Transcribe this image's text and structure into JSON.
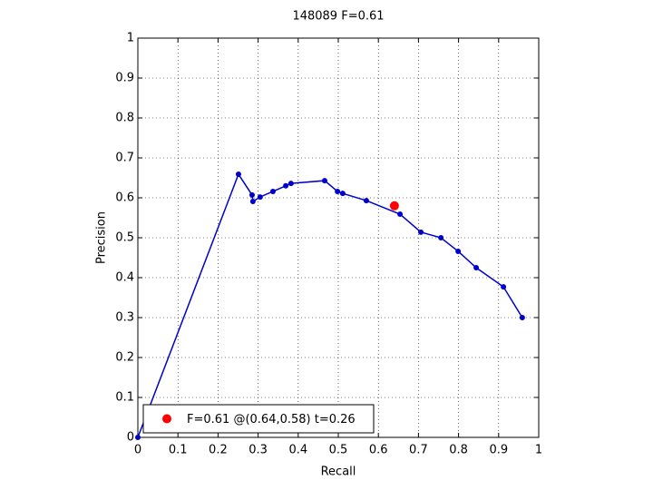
{
  "chart_data": {
    "type": "line",
    "title": "148089 F=0.61",
    "xlabel": "Recall",
    "ylabel": "Precision",
    "xlim": [
      0,
      1
    ],
    "ylim": [
      0,
      1
    ],
    "xticks": [
      0,
      0.1,
      0.2,
      0.3,
      0.4,
      0.5,
      0.6,
      0.7,
      0.8,
      0.9,
      1
    ],
    "yticks": [
      0,
      0.1,
      0.2,
      0.3,
      0.4,
      0.5,
      0.6,
      0.7,
      0.8,
      0.9,
      1
    ],
    "grid": true,
    "legend": "lower left",
    "series": [
      {
        "color": "#0000cc",
        "style": "line-marker",
        "x": [
          0,
          0.251,
          0.285,
          0.287,
          0.305,
          0.337,
          0.369,
          0.382,
          0.466,
          0.498,
          0.511,
          0.57,
          0.654,
          0.706,
          0.756,
          0.799,
          0.844,
          0.912,
          0.959
        ],
        "values": [
          0,
          0.659,
          0.607,
          0.591,
          0.602,
          0.616,
          0.63,
          0.636,
          0.643,
          0.616,
          0.611,
          0.593,
          0.559,
          0.514,
          0.5,
          0.466,
          0.425,
          0.377,
          0.3
        ]
      },
      {
        "name": "F=0.61 @(0.64,0.58) t=0.26",
        "color": "#ff0000",
        "style": "marker",
        "x": [
          0.64
        ],
        "values": [
          0.58
        ]
      }
    ]
  }
}
